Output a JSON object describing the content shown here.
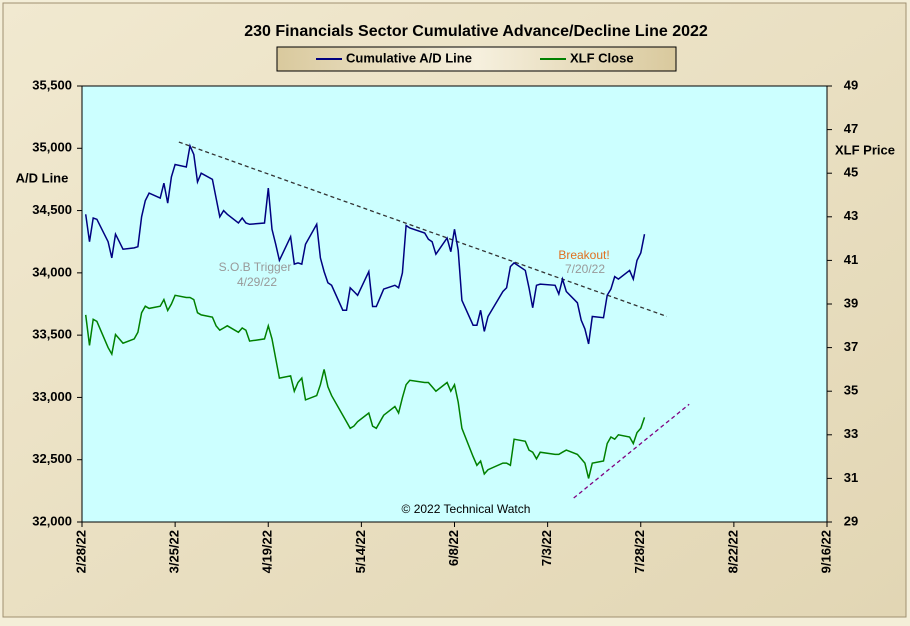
{
  "chart_data": {
    "type": "line",
    "title": "230 Financials Sector Cumulative Advance/Decline Line 2022",
    "y_label": "A/D Line",
    "y2_label": "XLF Price",
    "annotations": [
      "S.O.B Trigger",
      "4/29/22",
      "Breakout!",
      "7/20/22",
      "© 2022 Technical Watch"
    ],
    "xlim": [
      "2022-02-28",
      "2022-09-16"
    ],
    "xticks": [
      {
        "value": "2022-02-28",
        "label": "2/28/22"
      },
      {
        "value": "2022-03-25",
        "label": "3/25/22"
      },
      {
        "value": "2022-04-19",
        "label": "4/19/22"
      },
      {
        "value": "2022-05-14",
        "label": "5/14/22"
      },
      {
        "value": "2022-06-08",
        "label": "6/8/22"
      },
      {
        "value": "2022-07-03",
        "label": "7/3/22"
      },
      {
        "value": "2022-07-28",
        "label": "7/28/22"
      },
      {
        "value": "2022-08-22",
        "label": "8/22/22"
      },
      {
        "value": "2022-09-16",
        "label": "9/16/22"
      }
    ],
    "ylim": [
      32000,
      35500
    ],
    "yticks": [
      {
        "value": 32000,
        "label": "32,000"
      },
      {
        "value": 32500,
        "label": "32,500"
      },
      {
        "value": 33000,
        "label": "33,000"
      },
      {
        "value": 33500,
        "label": "33,500"
      },
      {
        "value": 34000,
        "label": "34,000"
      },
      {
        "value": 34500,
        "label": "34,500"
      },
      {
        "value": 35000,
        "label": "35,000"
      },
      {
        "value": 35500,
        "label": "35,500"
      }
    ],
    "y2lim": [
      29,
      49
    ],
    "y2ticks": [
      29,
      31,
      33,
      35,
      37,
      39,
      41,
      43,
      45,
      47,
      49
    ],
    "x": [
      "2022-03-01",
      "2022-03-02",
      "2022-03-03",
      "2022-03-04",
      "2022-03-07",
      "2022-03-08",
      "2022-03-09",
      "2022-03-10",
      "2022-03-11",
      "2022-03-14",
      "2022-03-15",
      "2022-03-16",
      "2022-03-17",
      "2022-03-18",
      "2022-03-21",
      "2022-03-22",
      "2022-03-23",
      "2022-03-24",
      "2022-03-25",
      "2022-03-28",
      "2022-03-29",
      "2022-03-30",
      "2022-03-31",
      "2022-04-01",
      "2022-04-04",
      "2022-04-05",
      "2022-04-06",
      "2022-04-07",
      "2022-04-08",
      "2022-04-11",
      "2022-04-12",
      "2022-04-13",
      "2022-04-14",
      "2022-04-18",
      "2022-04-19",
      "2022-04-20",
      "2022-04-21",
      "2022-04-22",
      "2022-04-25",
      "2022-04-26",
      "2022-04-27",
      "2022-04-28",
      "2022-04-29",
      "2022-05-02",
      "2022-05-03",
      "2022-05-04",
      "2022-05-05",
      "2022-05-06",
      "2022-05-09",
      "2022-05-10",
      "2022-05-11",
      "2022-05-12",
      "2022-05-13",
      "2022-05-16",
      "2022-05-17",
      "2022-05-18",
      "2022-05-19",
      "2022-05-20",
      "2022-05-23",
      "2022-05-24",
      "2022-05-25",
      "2022-05-26",
      "2022-05-27",
      "2022-05-31",
      "2022-06-01",
      "2022-06-02",
      "2022-06-03",
      "2022-06-06",
      "2022-06-07",
      "2022-06-08",
      "2022-06-09",
      "2022-06-10",
      "2022-06-13",
      "2022-06-14",
      "2022-06-15",
      "2022-06-16",
      "2022-06-17",
      "2022-06-21",
      "2022-06-22",
      "2022-06-23",
      "2022-06-24",
      "2022-06-27",
      "2022-06-28",
      "2022-06-29",
      "2022-06-30",
      "2022-07-01",
      "2022-07-05",
      "2022-07-06",
      "2022-07-07",
      "2022-07-08",
      "2022-07-11",
      "2022-07-12",
      "2022-07-13",
      "2022-07-14",
      "2022-07-15",
      "2022-07-18",
      "2022-07-19",
      "2022-07-20",
      "2022-07-21",
      "2022-07-22",
      "2022-07-25",
      "2022-07-26",
      "2022-07-27",
      "2022-07-28",
      "2022-07-29"
    ],
    "series": [
      {
        "name": "Cumulative A/D Line",
        "color": "#000080",
        "values": [
          34470,
          34250,
          34440,
          34430,
          34250,
          34120,
          34310,
          34250,
          34190,
          34200,
          34210,
          34450,
          34580,
          34640,
          34600,
          34720,
          34560,
          34770,
          34870,
          34850,
          35020,
          34950,
          34730,
          34800,
          34750,
          34600,
          34450,
          34500,
          34470,
          34400,
          34440,
          34400,
          34390,
          34400,
          34680,
          34350,
          34230,
          34100,
          34290,
          34070,
          34080,
          34070,
          34230,
          34390,
          34120,
          34010,
          33920,
          33900,
          33700,
          33700,
          33880,
          33850,
          33820,
          34010,
          33730,
          33730,
          33800,
          33870,
          33900,
          33880,
          34000,
          34380,
          34360,
          34320,
          34270,
          34250,
          34150,
          34280,
          34170,
          34350,
          34180,
          33780,
          33580,
          33580,
          33700,
          33530,
          33650,
          33850,
          33880,
          34050,
          34080,
          34020,
          33880,
          33720,
          33900,
          33910,
          33900,
          33830,
          33950,
          33850,
          33760,
          33620,
          33550,
          33430,
          33650,
          33640,
          33820,
          33870,
          33970,
          33950,
          34020,
          33950,
          34100,
          34160,
          34310
        ]
      },
      {
        "name": "XLF Close",
        "color": "#008000",
        "axis": "y2",
        "values": [
          38.5,
          37.1,
          38.3,
          38.2,
          37.0,
          36.7,
          37.6,
          37.4,
          37.2,
          37.4,
          37.7,
          38.6,
          38.9,
          38.8,
          38.9,
          39.2,
          38.7,
          39.0,
          39.4,
          39.3,
          39.3,
          39.2,
          38.6,
          38.5,
          38.4,
          38.0,
          37.8,
          37.9,
          38.0,
          37.7,
          37.9,
          37.8,
          37.3,
          37.4,
          38.0,
          37.4,
          36.5,
          35.6,
          35.7,
          35.0,
          35.4,
          35.6,
          34.6,
          34.8,
          35.3,
          36.0,
          35.2,
          34.8,
          33.9,
          33.6,
          33.3,
          33.4,
          33.6,
          34.0,
          33.4,
          33.3,
          33.6,
          33.9,
          34.3,
          34.0,
          34.7,
          35.3,
          35.5,
          35.4,
          35.4,
          35.2,
          35.0,
          35.4,
          35.0,
          35.3,
          34.5,
          33.3,
          32.0,
          31.6,
          31.8,
          31.2,
          31.4,
          31.7,
          31.7,
          31.6,
          32.8,
          32.7,
          32.3,
          32.2,
          31.9,
          32.2,
          32.1,
          32.1,
          32.2,
          32.3,
          32.1,
          31.9,
          31.7,
          31.0,
          31.7,
          31.8,
          32.6,
          32.9,
          32.8,
          33.0,
          32.9,
          32.6,
          33.1,
          33.3,
          33.8
        ]
      }
    ],
    "trend_lines": [
      {
        "color": "#333333",
        "x": [
          "2022-03-26",
          "2022-08-04"
        ],
        "values": [
          35050,
          33650
        ]
      },
      {
        "color": "#800080",
        "axis": "y2",
        "x": [
          "2022-07-10",
          "2022-08-10"
        ],
        "values": [
          30.1,
          34.4
        ]
      }
    ]
  }
}
